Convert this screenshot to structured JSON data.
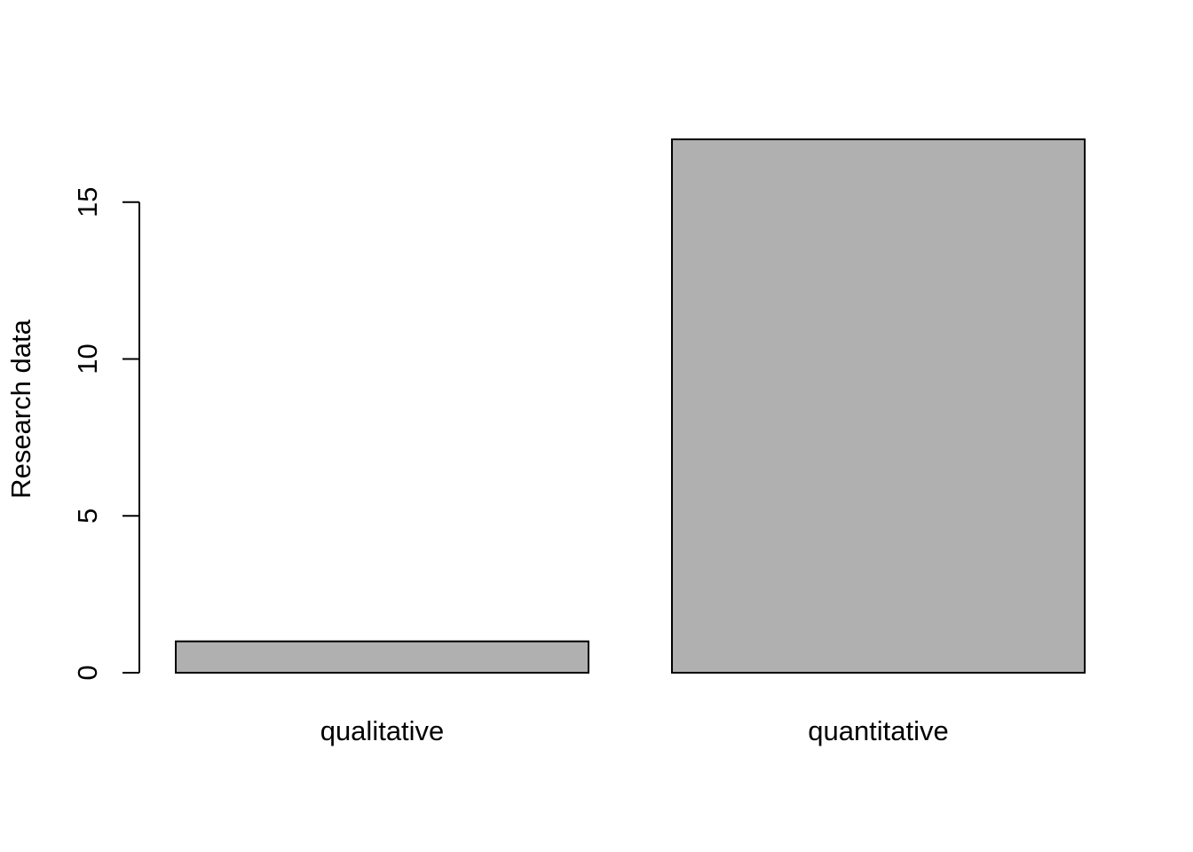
{
  "chart_data": {
    "type": "bar",
    "title": "",
    "xlabel": "",
    "ylabel": "Research data",
    "categories": [
      "qualitative",
      "quantitative"
    ],
    "values": [
      1,
      17
    ],
    "yticks": [
      0,
      5,
      10,
      15
    ],
    "ytick_labels": [
      "0",
      "5",
      "10",
      "15"
    ],
    "ylim": [
      0,
      17
    ],
    "grid": false,
    "legend": "none",
    "colors": {
      "bar_fill": "#b0b0b0",
      "bar_stroke": "#000000",
      "axis": "#000000"
    }
  }
}
